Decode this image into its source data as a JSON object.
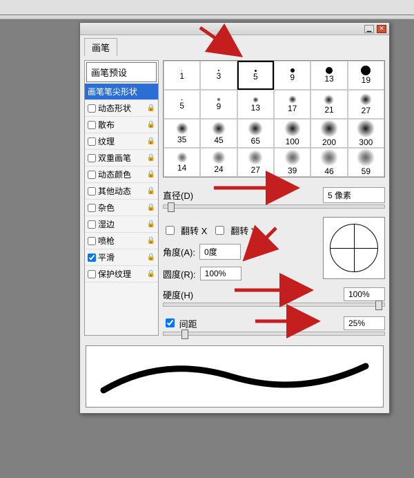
{
  "panel": {
    "tab_label": "画笔",
    "preset_header": "画笔预设"
  },
  "sidebar": {
    "items": [
      {
        "label": "画笔笔尖形状",
        "checked": null,
        "selected": true,
        "lock": false
      },
      {
        "label": "动态形状",
        "checked": false,
        "lock": true
      },
      {
        "label": "散布",
        "checked": false,
        "lock": true
      },
      {
        "label": "纹理",
        "checked": false,
        "lock": true
      },
      {
        "label": "双重画笔",
        "checked": false,
        "lock": true
      },
      {
        "label": "动态颜色",
        "checked": false,
        "lock": true
      },
      {
        "label": "其他动态",
        "checked": false,
        "lock": true
      },
      {
        "label": "杂色",
        "checked": false,
        "lock": true
      },
      {
        "label": "湿边",
        "checked": false,
        "lock": true
      },
      {
        "label": "喷枪",
        "checked": false,
        "lock": true
      },
      {
        "label": "平滑",
        "checked": true,
        "lock": true
      },
      {
        "label": "保护纹理",
        "checked": false,
        "lock": true
      }
    ]
  },
  "brushes": {
    "row1": [
      {
        "size": 1,
        "type": "hard",
        "d": 1
      },
      {
        "size": 3,
        "type": "hard",
        "d": 2
      },
      {
        "size": 5,
        "type": "hard",
        "d": 3,
        "selected": true
      },
      {
        "size": 9,
        "type": "hard",
        "d": 6
      },
      {
        "size": 13,
        "type": "hard",
        "d": 10
      },
      {
        "size": 19,
        "type": "hard",
        "d": 14
      }
    ],
    "row2": [
      {
        "size": 5,
        "type": "soft",
        "d": 3
      },
      {
        "size": 9,
        "type": "soft",
        "d": 6
      },
      {
        "size": 13,
        "type": "soft",
        "d": 9
      },
      {
        "size": 17,
        "type": "soft",
        "d": 12
      },
      {
        "size": 21,
        "type": "soft",
        "d": 15
      },
      {
        "size": 27,
        "type": "soft",
        "d": 18
      }
    ],
    "row3": [
      {
        "size": 35,
        "type": "soft",
        "d": 18
      },
      {
        "size": 45,
        "type": "soft",
        "d": 20
      },
      {
        "size": 65,
        "type": "soft",
        "d": 22
      },
      {
        "size": 100,
        "type": "soft",
        "d": 24
      },
      {
        "size": 200,
        "type": "soft",
        "d": 26
      },
      {
        "size": 300,
        "type": "soft",
        "d": 28
      }
    ],
    "row4": [
      {
        "size": 14,
        "type": "spatter",
        "d": 16
      },
      {
        "size": 24,
        "type": "spatter",
        "d": 20
      },
      {
        "size": 27,
        "type": "spatter",
        "d": 22
      },
      {
        "size": 39,
        "type": "spatter",
        "d": 24
      },
      {
        "size": 46,
        "type": "spatter",
        "d": 26
      },
      {
        "size": 59,
        "type": "spatter",
        "d": 28
      }
    ]
  },
  "controls": {
    "diameter_label": "直径(D)",
    "diameter_value": "5 像素",
    "flipx_label": "翻转 X",
    "flipy_label": "翻转 Y",
    "angle_label": "角度(A):",
    "angle_value": "0度",
    "roundness_label": "圆度(R):",
    "roundness_value": "100%",
    "hardness_label": "硬度(H)",
    "hardness_value": "100%",
    "spacing_label": "间距",
    "spacing_value": "25%",
    "spacing_checked": true
  },
  "arrows": {
    "color": "#c41e1e"
  }
}
